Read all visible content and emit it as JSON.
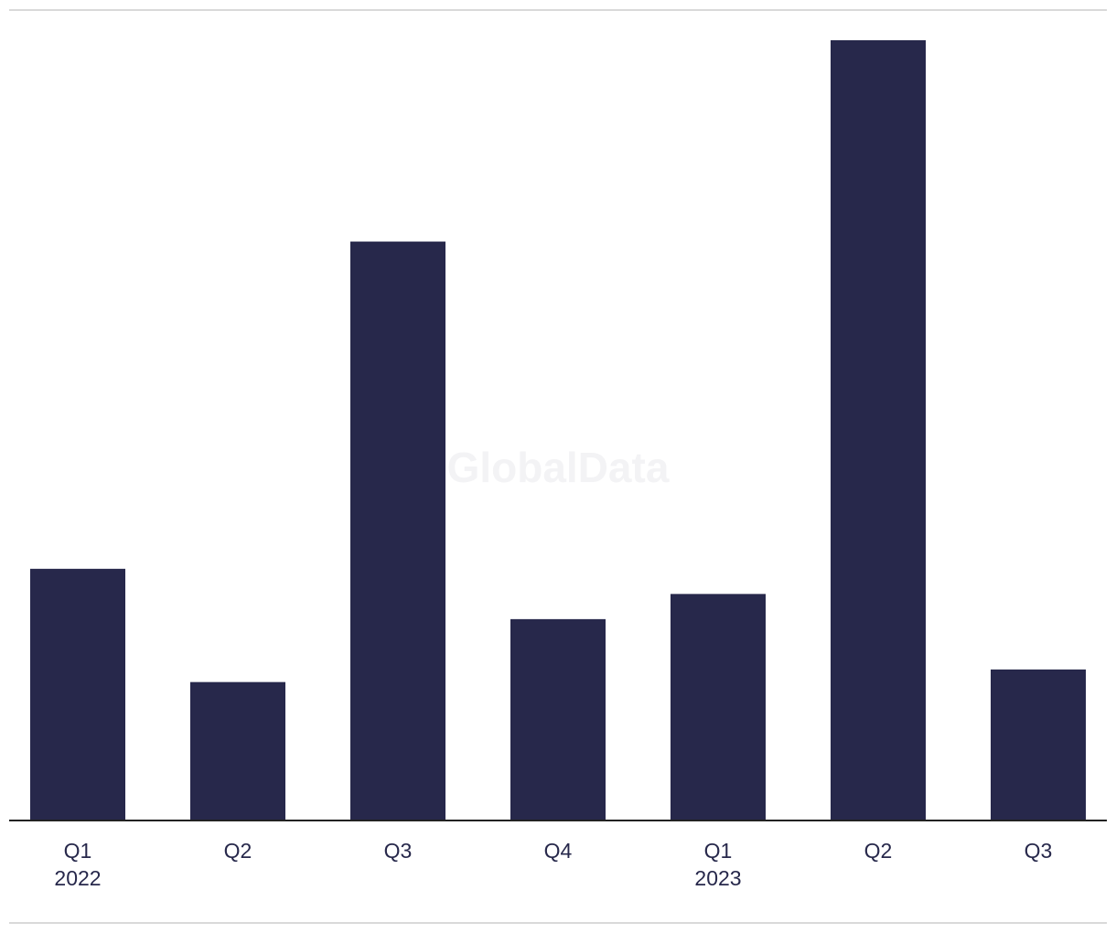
{
  "chart_data": {
    "type": "bar",
    "watermark": "GlobalData",
    "categories": [
      "Q1 2022",
      "Q2",
      "Q3",
      "Q4",
      "Q1 2023",
      "Q2",
      "Q3"
    ],
    "values": [
      20,
      11,
      46,
      16,
      18,
      62,
      12
    ],
    "color": "#27284b"
  }
}
